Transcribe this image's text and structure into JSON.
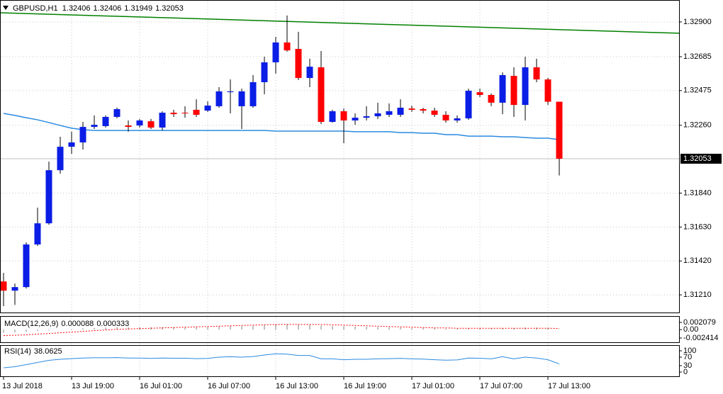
{
  "chart_data": [
    {
      "type": "candlestick",
      "title": "GBPUSD,H1",
      "categories": [
        "13 Jul 2018",
        null,
        null,
        null,
        null,
        null,
        "13 Jul 19:00",
        null,
        null,
        null,
        null,
        null,
        "16 Jul 01:00",
        null,
        null,
        null,
        null,
        null,
        "16 Jul 07:00",
        null,
        null,
        null,
        null,
        null,
        "16 Jul 13:00",
        null,
        null,
        null,
        null,
        null,
        "16 Jul 19:00",
        null,
        null,
        null,
        null,
        null,
        "17 Jul 01:00",
        null,
        null,
        null,
        null,
        null,
        "17 Jul 07:00",
        null,
        null,
        null,
        null,
        null,
        "17 Jul 13:00",
        null
      ],
      "open": [
        1.31293,
        1.31236,
        1.31258,
        1.31522,
        1.31653,
        1.31982,
        1.32127,
        1.32154,
        1.3225,
        1.32255,
        1.32312,
        1.32259,
        1.32259,
        1.32285,
        1.32246,
        1.32338,
        1.32338,
        1.32356,
        1.32351,
        1.32378,
        1.32465,
        1.32378,
        1.32378,
        1.32527,
        1.3265,
        1.32773,
        1.32733,
        1.32553,
        1.32619,
        1.32281,
        1.32347,
        1.3229,
        1.32307,
        1.32316,
        1.32325,
        1.32325,
        1.32364,
        1.3236,
        1.32351,
        1.32325,
        1.3229,
        1.32303,
        1.32465,
        1.32448,
        1.324,
        1.32566,
        1.32386,
        1.32619,
        1.32544,
        1.32406
      ],
      "high": [
        1.31346,
        1.3128,
        1.31535,
        1.3175,
        1.32035,
        1.32189,
        1.3222,
        1.32281,
        1.32321,
        1.32321,
        1.32369,
        1.3229,
        1.32299,
        1.32299,
        1.32347,
        1.32356,
        1.32378,
        1.32421,
        1.32408,
        1.32496,
        1.32544,
        1.32487,
        1.32571,
        1.32685,
        1.32808,
        1.3294,
        1.32839,
        1.32672,
        1.3272,
        1.32356,
        1.32364,
        1.32334,
        1.32378,
        1.324,
        1.32395,
        1.32421,
        1.32382,
        1.32369,
        1.32369,
        1.32347,
        1.32321,
        1.32487,
        1.32487,
        1.32457,
        1.32588,
        1.32619,
        1.32685,
        1.32672,
        1.32553,
        1.32406
      ],
      "low": [
        1.3114,
        1.31148,
        1.31249,
        1.31513,
        1.31644,
        1.31961,
        1.32083,
        1.3211,
        1.32237,
        1.32246,
        1.32303,
        1.3222,
        1.32246,
        1.32237,
        1.32228,
        1.32312,
        1.32307,
        1.32312,
        1.32343,
        1.32369,
        1.32334,
        1.32237,
        1.32369,
        1.32452,
        1.3258,
        1.32716,
        1.3254,
        1.32496,
        1.32268,
        1.32277,
        1.32149,
        1.32263,
        1.3229,
        1.32299,
        1.32312,
        1.32312,
        1.32343,
        1.32334,
        1.32312,
        1.32277,
        1.32277,
        1.32294,
        1.32435,
        1.32378,
        1.32329,
        1.32312,
        1.3229,
        1.32527,
        1.32386,
        1.31949
      ],
      "close": [
        1.31236,
        1.31258,
        1.31522,
        1.31653,
        1.31982,
        1.32127,
        1.32154,
        1.3225,
        1.32263,
        1.32312,
        1.3236,
        1.3225,
        1.3229,
        1.32246,
        1.32338,
        1.32329,
        1.32334,
        1.32325,
        1.32382,
        1.3247,
        1.3247,
        1.3247,
        1.32527,
        1.3265,
        1.32773,
        1.32724,
        1.32553,
        1.32623,
        1.32281,
        1.32347,
        1.3229,
        1.32307,
        1.32316,
        1.32334,
        1.32347,
        1.32369,
        1.32356,
        1.32351,
        1.32325,
        1.3229,
        1.32303,
        1.32474,
        1.32448,
        1.324,
        1.32571,
        1.32386,
        1.32619,
        1.32544,
        1.32406,
        1.32053
      ],
      "colors": {
        "up": "#0a1ee6",
        "down": "#ff0000",
        "wick": "#000000"
      },
      "overlays": [
        {
          "color": "#2a8ae0",
          "values": [
            1.32334,
            1.32321,
            1.32307,
            1.32294,
            1.32277,
            1.32259,
            1.32242,
            1.32233,
            1.32228,
            1.32228,
            1.32228,
            1.32228,
            1.32228,
            1.32228,
            1.32228,
            1.32228,
            1.32228,
            1.32228,
            1.32228,
            1.32228,
            1.32228,
            1.32228,
            1.32228,
            1.32228,
            1.32224,
            1.32224,
            1.32224,
            1.32224,
            1.32224,
            1.32224,
            1.32224,
            1.3222,
            1.3222,
            1.3222,
            1.3222,
            1.32215,
            1.32215,
            1.32211,
            1.32211,
            1.32202,
            1.32202,
            1.32193,
            1.32193,
            1.32193,
            1.32189,
            1.32189,
            1.32184,
            1.3218,
            1.3218,
            1.32171
          ]
        },
        {
          "color": "#008000",
          "x": [
            -0.3,
            59.6
          ],
          "values": [
            1.32957,
            1.3283
          ]
        }
      ],
      "ylim": [
        1.31105,
        1.33014
      ],
      "yticks": [
        {
          "value": 1.329,
          "label": "1.32900"
        },
        {
          "value": 1.32685,
          "label": "1.32685"
        },
        {
          "value": 1.32475,
          "label": "1.32475"
        },
        {
          "value": 1.3226,
          "label": "1.32260"
        },
        {
          "value": 1.3184,
          "label": "1.31840"
        },
        {
          "value": 1.3163,
          "label": "1.31630"
        },
        {
          "value": 1.3142,
          "label": "1.31420"
        },
        {
          "value": 1.3121,
          "label": "1.31210"
        }
      ],
      "grid": true
    },
    {
      "type": "macd",
      "title": "MACD(12,26,9)",
      "histogram": [
        -0.0009,
        -0.0008,
        -0.0006,
        -0.0004,
        -0.0002,
        0,
        0.0002,
        0.0004,
        0.0005,
        0.0006,
        0.0007,
        0.0007,
        0.0007,
        0.0007,
        0.0007,
        0.0007,
        0.0007,
        0.0007,
        0.0008,
        0.0009,
        0.001,
        0.001,
        0.0011,
        0.0013,
        0.0015,
        0.0016,
        0.0015,
        0.0014,
        0.0012,
        0.0011,
        0.001,
        0.0009,
        0.0008,
        0.0007,
        0.0007,
        0.0006,
        0.0005,
        0.0005,
        0.0004,
        0.0003,
        0.0003,
        0.0004,
        0.0004,
        0.0004,
        0.0005,
        0.0005,
        0.0006,
        0.0006,
        0.0005,
        8.8e-05
      ],
      "signal": [
        -0.0017,
        -0.0016,
        -0.0015,
        -0.0013,
        -0.0011,
        -0.0009,
        -0.0007,
        -0.0005,
        -0.0003,
        -0.0001,
        0.0001,
        0.0002,
        0.0003,
        0.0004,
        0.0005,
        0.0006,
        0.0007,
        0.0008,
        0.0009,
        0.001,
        0.0011,
        0.0012,
        0.0013,
        0.0014,
        0.0015,
        0.0015,
        0.0015,
        0.0015,
        0.0015,
        0.0014,
        0.0013,
        0.0012,
        0.0011,
        0.001,
        0.0009,
        0.0008,
        0.0007,
        0.0006,
        0.0005,
        0.0005,
        0.0004,
        0.0004,
        0.0004,
        0.0004,
        0.0004,
        0.0004,
        0.0004,
        0.0004,
        0.0004,
        0.000333
      ],
      "colors": {
        "histogram": "#c0c0c0",
        "signal": "#ff0000"
      },
      "ylim": [
        -0.002414,
        0.002079
      ],
      "yticks": [
        0.002079,
        {
          "value": 0,
          "label": "0.00"
        },
        -0.002414
      ]
    },
    {
      "type": "line",
      "title": "RSI(14)",
      "values": [
        20,
        25,
        35,
        45,
        55,
        60,
        63,
        66,
        67,
        67,
        68,
        66,
        66,
        64,
        66,
        65,
        65,
        63,
        64,
        70,
        72,
        70,
        73,
        80,
        86,
        84,
        78,
        78,
        62,
        62,
        58,
        60,
        60,
        62,
        63,
        64,
        62,
        61,
        58,
        56,
        57,
        66,
        65,
        62,
        72,
        62,
        70,
        66,
        58,
        38.0625
      ],
      "color": "#2a8ae0",
      "ylim": [
        0,
        100
      ],
      "yticks": [
        100,
        70,
        30,
        0
      ]
    }
  ]
}
